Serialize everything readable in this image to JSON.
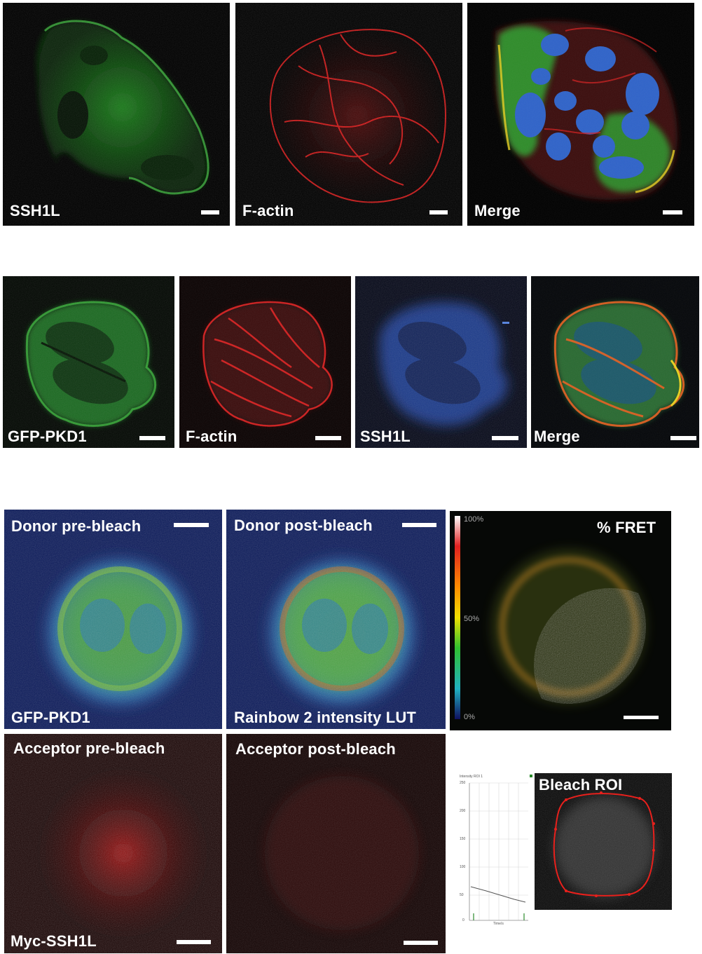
{
  "row1": {
    "panels": [
      {
        "label": "SSH1L"
      },
      {
        "label": "F-actin"
      },
      {
        "label": "Merge"
      }
    ]
  },
  "row2": {
    "panels": [
      {
        "label": "GFP-PKD1"
      },
      {
        "label": "F-actin"
      },
      {
        "label": "SSH1L"
      },
      {
        "label": "Merge"
      }
    ]
  },
  "fret": {
    "donor_pre": {
      "title": "Donor pre-bleach",
      "caption": "GFP-PKD1"
    },
    "donor_post": {
      "title": "Donor post-bleach",
      "caption": "Rainbow 2 intensity LUT"
    },
    "fret_map": {
      "title": "% FRET",
      "scale_top": "100%",
      "scale_mid": "50%",
      "scale_bottom": "0%"
    },
    "acceptor_pre": {
      "title": "Acceptor pre-bleach",
      "caption": "Myc-SSH1L"
    },
    "acceptor_post": {
      "title": "Acceptor post-bleach"
    },
    "bleach_roi": {
      "title": "Bleach ROI"
    },
    "intensity_graph": {
      "title": "Intensity ROI 1",
      "y_ticks": [
        "250",
        "200",
        "150",
        "100",
        "50",
        "0"
      ],
      "x_label": "Time/s"
    }
  },
  "colors": {
    "green_channel": "#2fbf2f",
    "red_channel": "#e01818",
    "blue_channel": "#3a6fd8",
    "roi_outline": "#e8201c"
  }
}
